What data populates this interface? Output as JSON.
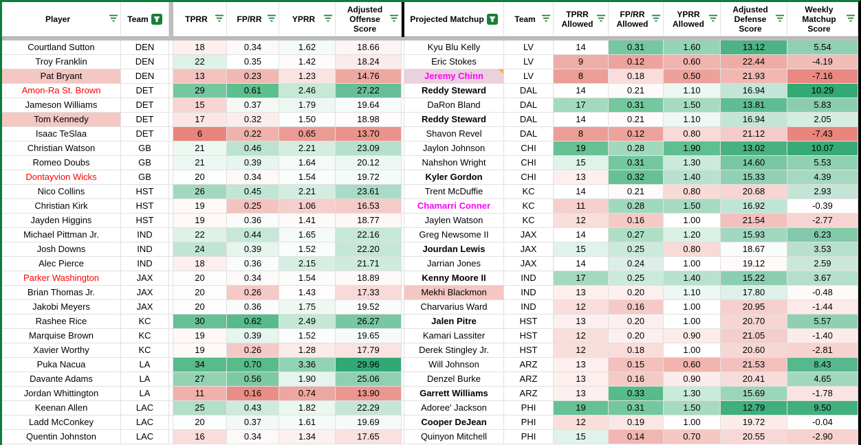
{
  "colors": {
    "scale_red": "#e67c73",
    "scale_green": "#57bb8a",
    "scale_green_deep": "#31a873",
    "filter_green": "#188038",
    "border_green": "#0e7d3b",
    "divider_gray": "#bdbdbd",
    "divider_black": "#000000",
    "gridline": "#e0e0e0",
    "name_red": "#ff0000",
    "name_magenta": "#ff00ff",
    "pink_bg": "#f4c7c3",
    "mauve_bg": "#ead1dc",
    "note_orange": "#ffab40"
  },
  "offense_table": {
    "headers": [
      {
        "label": "Player",
        "filter": "lines"
      },
      {
        "label": "Team",
        "filter": "box"
      },
      {
        "label": "TPRR",
        "filter": "lines"
      },
      {
        "label": "FP/RR",
        "filter": "lines"
      },
      {
        "label": "YPRR",
        "filter": "lines"
      },
      {
        "label": "Adjusted Offense Score",
        "filter": "lines"
      }
    ],
    "colormaps": [
      {
        "min": 5,
        "mid": 19.8,
        "max": 31,
        "palette": "stat",
        "invert": false
      },
      {
        "min": 0.13,
        "mid": 0.35,
        "max": 0.62,
        "palette": "stat",
        "invert": false
      },
      {
        "min": 0.4,
        "mid": 1.45,
        "max": 4.4,
        "palette": "stat",
        "invert": false
      },
      {
        "min": 12.5,
        "mid": 19.2,
        "max": 30,
        "palette": "score",
        "invert": false
      }
    ],
    "rows": [
      {
        "name": "Courtland Sutton",
        "team": "DEN",
        "cells": [
          "18",
          "0.34",
          "1.62",
          "18.66"
        ],
        "name_color": null,
        "name_bg": null,
        "bold": false,
        "note": false
      },
      {
        "name": "Troy Franklin",
        "team": "DEN",
        "cells": [
          "22",
          "0.35",
          "1.42",
          "18.24"
        ],
        "name_color": null,
        "name_bg": null,
        "bold": false,
        "note": false
      },
      {
        "name": "Pat Bryant",
        "team": "DEN",
        "cells": [
          "13",
          "0.23",
          "1.23",
          "14.76"
        ],
        "name_color": null,
        "name_bg": "#f4c7c3",
        "bold": false,
        "note": false
      },
      {
        "name": "Amon-Ra St. Brown",
        "team": "DET",
        "cells": [
          "29",
          "0.61",
          "2.46",
          "27.22"
        ],
        "name_color": "#ff0000",
        "name_bg": null,
        "bold": false,
        "note": false
      },
      {
        "name": "Jameson Williams",
        "team": "DET",
        "cells": [
          "15",
          "0.37",
          "1.79",
          "19.64"
        ],
        "name_color": null,
        "name_bg": null,
        "bold": false,
        "note": false
      },
      {
        "name": "Tom Kennedy",
        "team": "DET",
        "cells": [
          "17",
          "0.32",
          "1.50",
          "18.98"
        ],
        "name_color": null,
        "name_bg": "#f4c7c3",
        "bold": false,
        "note": false
      },
      {
        "name": "Isaac TeSlaa",
        "team": "DET",
        "cells": [
          "6",
          "0.22",
          "0.65",
          "13.70"
        ],
        "name_color": null,
        "name_bg": null,
        "bold": false,
        "note": false
      },
      {
        "name": "Christian Watson",
        "team": "GB",
        "cells": [
          "21",
          "0.46",
          "2.21",
          "23.09"
        ],
        "name_color": null,
        "name_bg": null,
        "bold": false,
        "note": false
      },
      {
        "name": "Romeo Doubs",
        "team": "GB",
        "cells": [
          "21",
          "0.39",
          "1.64",
          "20.12"
        ],
        "name_color": null,
        "name_bg": null,
        "bold": false,
        "note": false
      },
      {
        "name": "Dontayvion Wicks",
        "team": "GB",
        "cells": [
          "20",
          "0.34",
          "1.54",
          "19.72"
        ],
        "name_color": "#ff0000",
        "name_bg": null,
        "bold": false,
        "note": false
      },
      {
        "name": "Nico Collins",
        "team": "HST",
        "cells": [
          "26",
          "0.45",
          "2.21",
          "23.61"
        ],
        "name_color": null,
        "name_bg": null,
        "bold": false,
        "note": false
      },
      {
        "name": "Christian Kirk",
        "team": "HST",
        "cells": [
          "19",
          "0.25",
          "1.06",
          "16.53"
        ],
        "name_color": null,
        "name_bg": null,
        "bold": false,
        "note": false
      },
      {
        "name": "Jayden Higgins",
        "team": "HST",
        "cells": [
          "19",
          "0.36",
          "1.41",
          "18.77"
        ],
        "name_color": null,
        "name_bg": null,
        "bold": false,
        "note": false
      },
      {
        "name": "Michael Pittman Jr.",
        "team": "IND",
        "cells": [
          "22",
          "0.44",
          "1.65",
          "22.16"
        ],
        "name_color": null,
        "name_bg": null,
        "bold": false,
        "note": false
      },
      {
        "name": "Josh Downs",
        "team": "IND",
        "cells": [
          "24",
          "0.39",
          "1.52",
          "22.20"
        ],
        "name_color": null,
        "name_bg": null,
        "bold": false,
        "note": false
      },
      {
        "name": "Alec Pierce",
        "team": "IND",
        "cells": [
          "18",
          "0.36",
          "2.15",
          "21.71"
        ],
        "name_color": null,
        "name_bg": null,
        "bold": false,
        "note": false
      },
      {
        "name": "Parker Washington",
        "team": "JAX",
        "cells": [
          "20",
          "0.34",
          "1.54",
          "18.89"
        ],
        "name_color": "#ff0000",
        "name_bg": null,
        "bold": false,
        "note": false
      },
      {
        "name": "Brian Thomas Jr.",
        "team": "JAX",
        "cells": [
          "20",
          "0.26",
          "1.43",
          "17.33"
        ],
        "name_color": null,
        "name_bg": null,
        "bold": false,
        "note": false
      },
      {
        "name": "Jakobi Meyers",
        "team": "JAX",
        "cells": [
          "20",
          "0.36",
          "1.75",
          "19.52"
        ],
        "name_color": null,
        "name_bg": null,
        "bold": false,
        "note": false
      },
      {
        "name": "Rashee Rice",
        "team": "KC",
        "cells": [
          "30",
          "0.62",
          "2.49",
          "26.27"
        ],
        "name_color": null,
        "name_bg": null,
        "bold": false,
        "note": false
      },
      {
        "name": "Marquise Brown",
        "team": "KC",
        "cells": [
          "19",
          "0.39",
          "1.52",
          "19.65"
        ],
        "name_color": null,
        "name_bg": null,
        "bold": false,
        "note": false
      },
      {
        "name": "Xavier Worthy",
        "team": "KC",
        "cells": [
          "19",
          "0.26",
          "1.28",
          "17.79"
        ],
        "name_color": null,
        "name_bg": null,
        "bold": false,
        "note": false
      },
      {
        "name": "Puka Nacua",
        "team": "LA",
        "cells": [
          "34",
          "0.70",
          "3.36",
          "29.96"
        ],
        "name_color": null,
        "name_bg": null,
        "bold": false,
        "note": false
      },
      {
        "name": "Davante Adams",
        "team": "LA",
        "cells": [
          "27",
          "0.56",
          "1.90",
          "25.06"
        ],
        "name_color": null,
        "name_bg": null,
        "bold": false,
        "note": false
      },
      {
        "name": "Jordan Whittington",
        "team": "LA",
        "cells": [
          "11",
          "0.16",
          "0.74",
          "13.90"
        ],
        "name_color": null,
        "name_bg": null,
        "bold": false,
        "note": false
      },
      {
        "name": "Keenan Allen",
        "team": "LAC",
        "cells": [
          "25",
          "0.43",
          "1.82",
          "22.29"
        ],
        "name_color": null,
        "name_bg": null,
        "bold": false,
        "note": false
      },
      {
        "name": "Ladd McConkey",
        "team": "LAC",
        "cells": [
          "20",
          "0.37",
          "1.61",
          "19.69"
        ],
        "name_color": null,
        "name_bg": null,
        "bold": false,
        "note": false
      },
      {
        "name": "Quentin Johnston",
        "team": "LAC",
        "cells": [
          "16",
          "0.34",
          "1.34",
          "17.65"
        ],
        "name_color": null,
        "name_bg": null,
        "bold": false,
        "note": false
      }
    ]
  },
  "defense_table": {
    "headers": [
      {
        "label": "Projected Matchup",
        "filter": "box"
      },
      {
        "label": "Team",
        "filter": "lines"
      },
      {
        "label": "TPRR Allowed",
        "filter": "lines"
      },
      {
        "label": "FP/RR Allowed",
        "filter": "lines"
      },
      {
        "label": "YPRR Allowed",
        "filter": "lines"
      },
      {
        "label": "Adjusted Defense Score",
        "filter": "lines"
      },
      {
        "label": "Weekly Matchup Score",
        "filter": "lines"
      }
    ],
    "colormaps": [
      {
        "min": 6,
        "mid": 14,
        "max": 19.5,
        "palette": "stat",
        "invert": false
      },
      {
        "min": 0.08,
        "mid": 0.215,
        "max": 0.33,
        "palette": "stat",
        "invert": false
      },
      {
        "min": 0.3,
        "mid": 1.0,
        "max": 1.95,
        "palette": "stat",
        "invert": false
      },
      {
        "min": 12.3,
        "mid": 18.9,
        "max": 24.5,
        "palette": "score",
        "invert": true
      },
      {
        "min": -8,
        "mid": -0.2,
        "max": 10.4,
        "palette": "score",
        "invert": false
      }
    ],
    "rows": [
      {
        "name": "Kyu Blu Kelly",
        "team": "LV",
        "cells": [
          "14",
          "0.31",
          "1.60",
          "13.12",
          "5.54"
        ],
        "name_color": null,
        "name_bg": null,
        "bold": false,
        "note": false
      },
      {
        "name": "Eric Stokes",
        "team": "LV",
        "cells": [
          "9",
          "0.12",
          "0.60",
          "22.44",
          "-4.19"
        ],
        "name_color": null,
        "name_bg": null,
        "bold": false,
        "note": false
      },
      {
        "name": "Jeremy Chinn",
        "team": "LV",
        "cells": [
          "8",
          "0.18",
          "0.50",
          "21.93",
          "-7.16"
        ],
        "name_color": "#ff00ff",
        "name_bg": "#ead1dc",
        "bold": true,
        "note": true
      },
      {
        "name": "Reddy Steward",
        "team": "DAL",
        "cells": [
          "14",
          "0.21",
          "1.10",
          "16.94",
          "10.29"
        ],
        "name_color": null,
        "name_bg": null,
        "bold": true,
        "note": false
      },
      {
        "name": "DaRon Bland",
        "team": "DAL",
        "cells": [
          "17",
          "0.31",
          "1.50",
          "13.81",
          "5.83"
        ],
        "name_color": null,
        "name_bg": null,
        "bold": false,
        "note": false
      },
      {
        "name": "Reddy Steward",
        "team": "DAL",
        "cells": [
          "14",
          "0.21",
          "1.10",
          "16.94",
          "2.05"
        ],
        "name_color": null,
        "name_bg": null,
        "bold": true,
        "note": false
      },
      {
        "name": "Shavon Revel",
        "team": "DAL",
        "cells": [
          "8",
          "0.12",
          "0.80",
          "21.12",
          "-7.43"
        ],
        "name_color": null,
        "name_bg": null,
        "bold": false,
        "note": false
      },
      {
        "name": "Jaylon Johnson",
        "team": "CHI",
        "cells": [
          "19",
          "0.28",
          "1.90",
          "13.02",
          "10.07"
        ],
        "name_color": null,
        "name_bg": null,
        "bold": false,
        "note": false
      },
      {
        "name": "Nahshon Wright",
        "team": "CHI",
        "cells": [
          "15",
          "0.31",
          "1.30",
          "14.60",
          "5.53"
        ],
        "name_color": null,
        "name_bg": null,
        "bold": false,
        "note": false
      },
      {
        "name": "Kyler Gordon",
        "team": "CHI",
        "cells": [
          "13",
          "0.32",
          "1.40",
          "15.33",
          "4.39"
        ],
        "name_color": null,
        "name_bg": null,
        "bold": true,
        "note": false
      },
      {
        "name": "Trent McDuffie",
        "team": "KC",
        "cells": [
          "14",
          "0.21",
          "0.80",
          "20.68",
          "2.93"
        ],
        "name_color": null,
        "name_bg": null,
        "bold": false,
        "note": false
      },
      {
        "name": "Chamarri Conner",
        "team": "KC",
        "cells": [
          "11",
          "0.28",
          "1.50",
          "16.92",
          "-0.39"
        ],
        "name_color": "#ff00ff",
        "name_bg": null,
        "bold": true,
        "note": false
      },
      {
        "name": "Jaylen Watson",
        "team": "KC",
        "cells": [
          "12",
          "0.16",
          "1.00",
          "21.54",
          "-2.77"
        ],
        "name_color": null,
        "name_bg": null,
        "bold": false,
        "note": false
      },
      {
        "name": "Greg Newsome II",
        "team": "JAX",
        "cells": [
          "14",
          "0.27",
          "1.20",
          "15.93",
          "6.23"
        ],
        "name_color": null,
        "name_bg": null,
        "bold": false,
        "note": false
      },
      {
        "name": "Jourdan Lewis",
        "team": "JAX",
        "cells": [
          "15",
          "0.25",
          "0.80",
          "18.67",
          "3.53"
        ],
        "name_color": null,
        "name_bg": null,
        "bold": true,
        "note": false
      },
      {
        "name": "Jarrian Jones",
        "team": "JAX",
        "cells": [
          "14",
          "0.24",
          "1.00",
          "19.12",
          "2.59"
        ],
        "name_color": null,
        "name_bg": null,
        "bold": false,
        "note": false
      },
      {
        "name": "Kenny Moore II",
        "team": "IND",
        "cells": [
          "17",
          "0.25",
          "1.40",
          "15.22",
          "3.67"
        ],
        "name_color": null,
        "name_bg": null,
        "bold": true,
        "note": false
      },
      {
        "name": "Mekhi Blackmon",
        "team": "IND",
        "cells": [
          "13",
          "0.20",
          "1.10",
          "17.80",
          "-0.48"
        ],
        "name_color": null,
        "name_bg": "#f4c7c3",
        "bold": false,
        "note": false
      },
      {
        "name": "Charvarius Ward",
        "team": "IND",
        "cells": [
          "12",
          "0.16",
          "1.00",
          "20.95",
          "-1.44"
        ],
        "name_color": null,
        "name_bg": null,
        "bold": false,
        "note": false
      },
      {
        "name": "Jalen Pitre",
        "team": "HST",
        "cells": [
          "13",
          "0.20",
          "1.00",
          "20.70",
          "5.57"
        ],
        "name_color": null,
        "name_bg": null,
        "bold": true,
        "note": false
      },
      {
        "name": "Kamari Lassiter",
        "team": "HST",
        "cells": [
          "12",
          "0.20",
          "0.90",
          "21.05",
          "-1.40"
        ],
        "name_color": null,
        "name_bg": null,
        "bold": false,
        "note": false
      },
      {
        "name": "Derek Stingley Jr.",
        "team": "HST",
        "cells": [
          "12",
          "0.18",
          "1.00",
          "20.60",
          "-2.81"
        ],
        "name_color": null,
        "name_bg": null,
        "bold": false,
        "note": false
      },
      {
        "name": "Will Johnson",
        "team": "ARZ",
        "cells": [
          "13",
          "0.15",
          "0.60",
          "21.53",
          "8.43"
        ],
        "name_color": null,
        "name_bg": null,
        "bold": false,
        "note": false
      },
      {
        "name": "Denzel Burke",
        "team": "ARZ",
        "cells": [
          "13",
          "0.16",
          "0.90",
          "20.41",
          "4.65"
        ],
        "name_color": null,
        "name_bg": null,
        "bold": false,
        "note": false
      },
      {
        "name": "Garrett Williams",
        "team": "ARZ",
        "cells": [
          "13",
          "0.33",
          "1.30",
          "15.69",
          "-1.78"
        ],
        "name_color": null,
        "name_bg": null,
        "bold": true,
        "note": false
      },
      {
        "name": "Adoree' Jackson",
        "team": "PHI",
        "cells": [
          "19",
          "0.31",
          "1.50",
          "12.79",
          "9.50"
        ],
        "name_color": null,
        "name_bg": null,
        "bold": false,
        "note": false
      },
      {
        "name": "Cooper DeJean",
        "team": "PHI",
        "cells": [
          "12",
          "0.19",
          "1.00",
          "19.72",
          "-0.04"
        ],
        "name_color": null,
        "name_bg": null,
        "bold": true,
        "note": false
      },
      {
        "name": "Quinyon Mitchell",
        "team": "PHI",
        "cells": [
          "15",
          "0.14",
          "0.70",
          "20.55",
          "-2.90"
        ],
        "name_color": null,
        "name_bg": null,
        "bold": false,
        "note": false
      }
    ]
  }
}
